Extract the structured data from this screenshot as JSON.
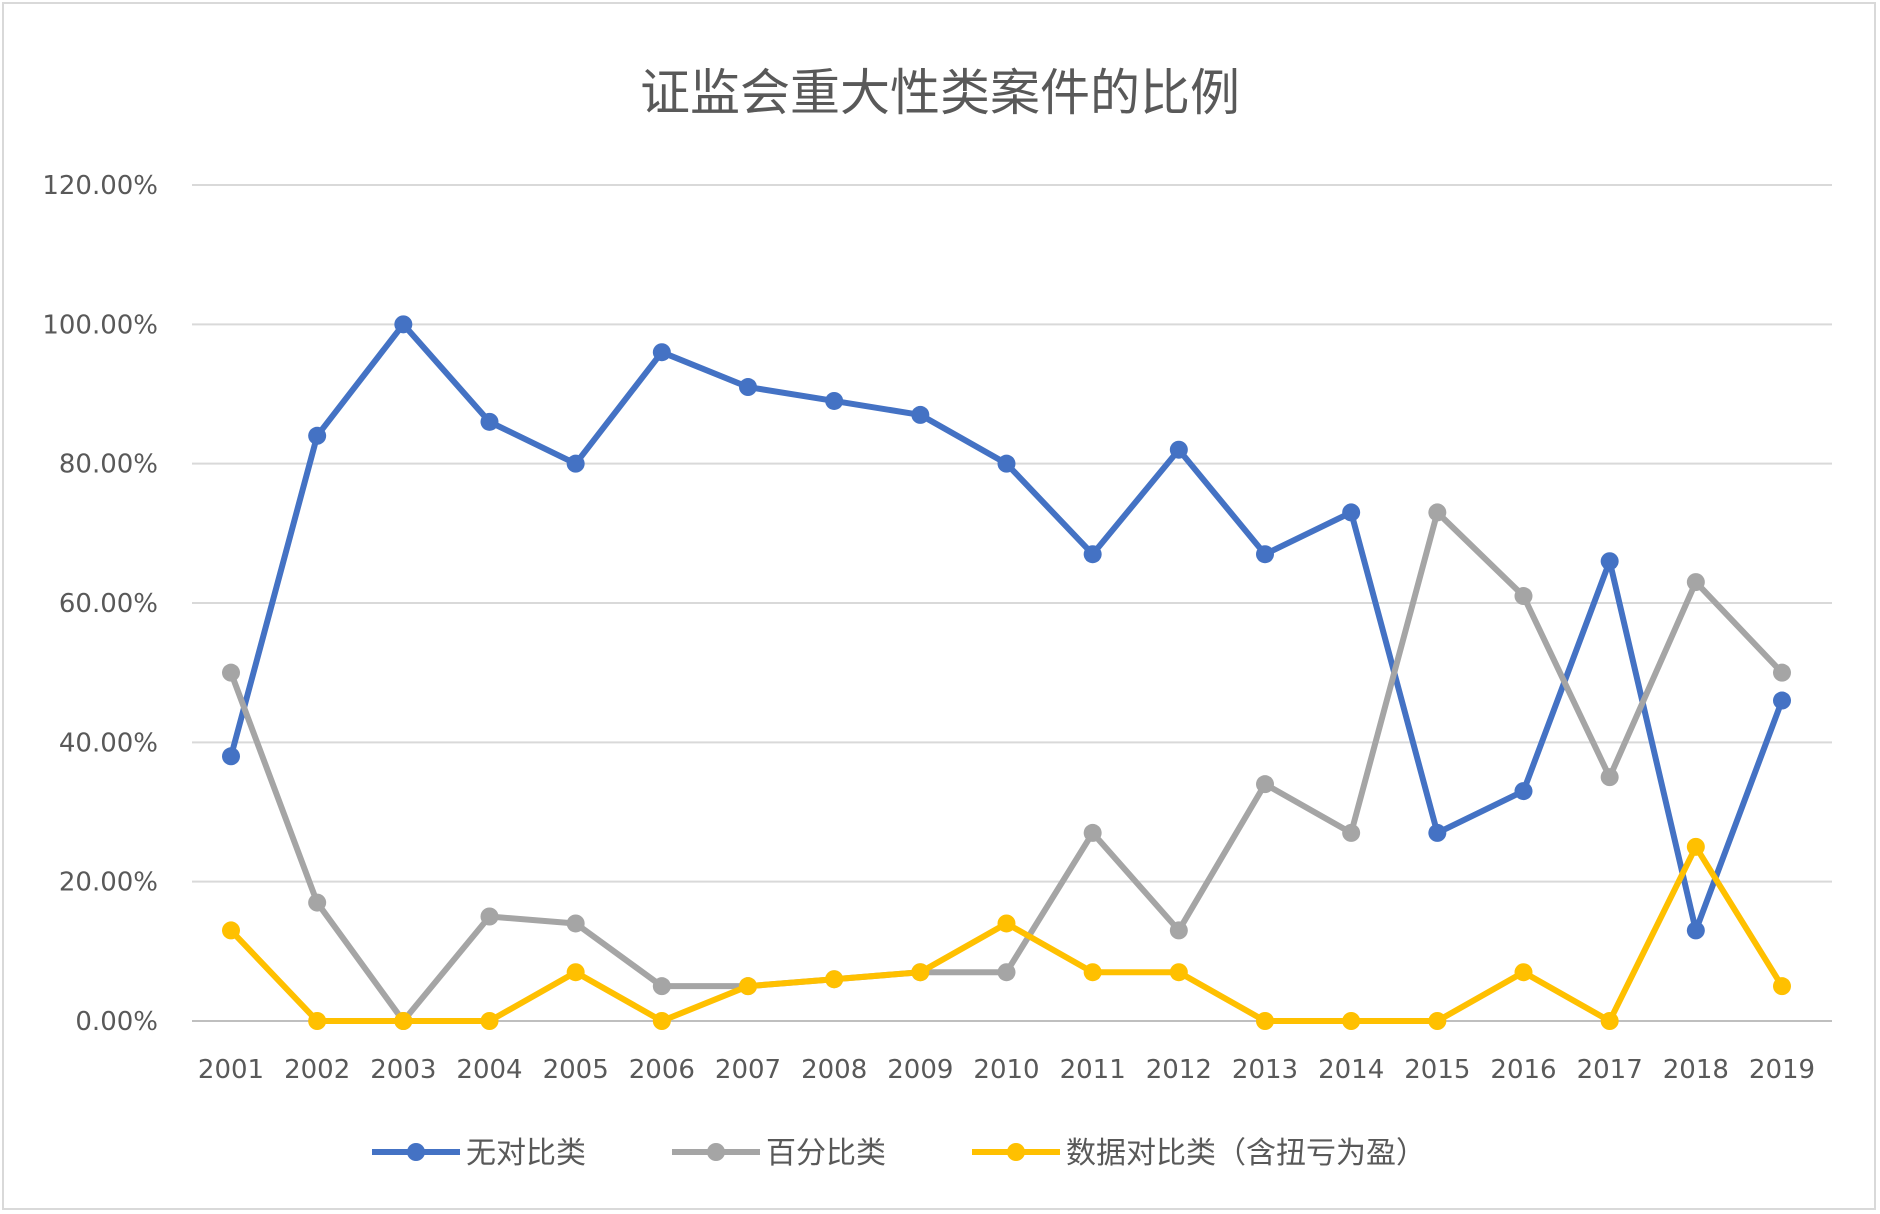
{
  "chart_data": {
    "type": "line",
    "title": "证监会重大性类案件的比例",
    "xlabel": "",
    "ylabel": "",
    "ylim": [
      0,
      1.2
    ],
    "y_ticks": [
      0,
      0.2,
      0.4,
      0.6,
      0.8,
      1.0,
      1.2
    ],
    "y_tick_labels": [
      "0.00%",
      "20.00%",
      "40.00%",
      "60.00%",
      "80.00%",
      "100.00%",
      "120.00%"
    ],
    "grid": true,
    "legend_position": "bottom",
    "categories": [
      "2001",
      "2002",
      "2003",
      "2004",
      "2005",
      "2006",
      "2007",
      "2008",
      "2009",
      "2010",
      "2011",
      "2012",
      "2013",
      "2014",
      "2015",
      "2016",
      "2017",
      "2018",
      "2019"
    ],
    "series": [
      {
        "name": "无对比类",
        "color": "#4472c4",
        "values": [
          0.38,
          0.84,
          1.0,
          0.86,
          0.8,
          0.96,
          0.91,
          0.89,
          0.87,
          0.8,
          0.67,
          0.82,
          0.67,
          0.73,
          0.27,
          0.33,
          0.66,
          0.13,
          0.46
        ]
      },
      {
        "name": "百分比类",
        "color": "#a5a5a5",
        "values": [
          0.5,
          0.17,
          0.0,
          0.15,
          0.14,
          0.05,
          0.05,
          0.06,
          0.07,
          0.07,
          0.27,
          0.13,
          0.34,
          0.27,
          0.73,
          0.61,
          0.35,
          0.63,
          0.5
        ]
      },
      {
        "name": "数据对比类（含扭亏为盈）",
        "color": "#ffc000",
        "values": [
          0.13,
          0.0,
          0.0,
          0.0,
          0.07,
          0.0,
          0.05,
          0.06,
          0.07,
          0.14,
          0.07,
          0.07,
          0.0,
          0.0,
          0.0,
          0.07,
          0.0,
          0.25,
          0.05
        ]
      }
    ]
  }
}
